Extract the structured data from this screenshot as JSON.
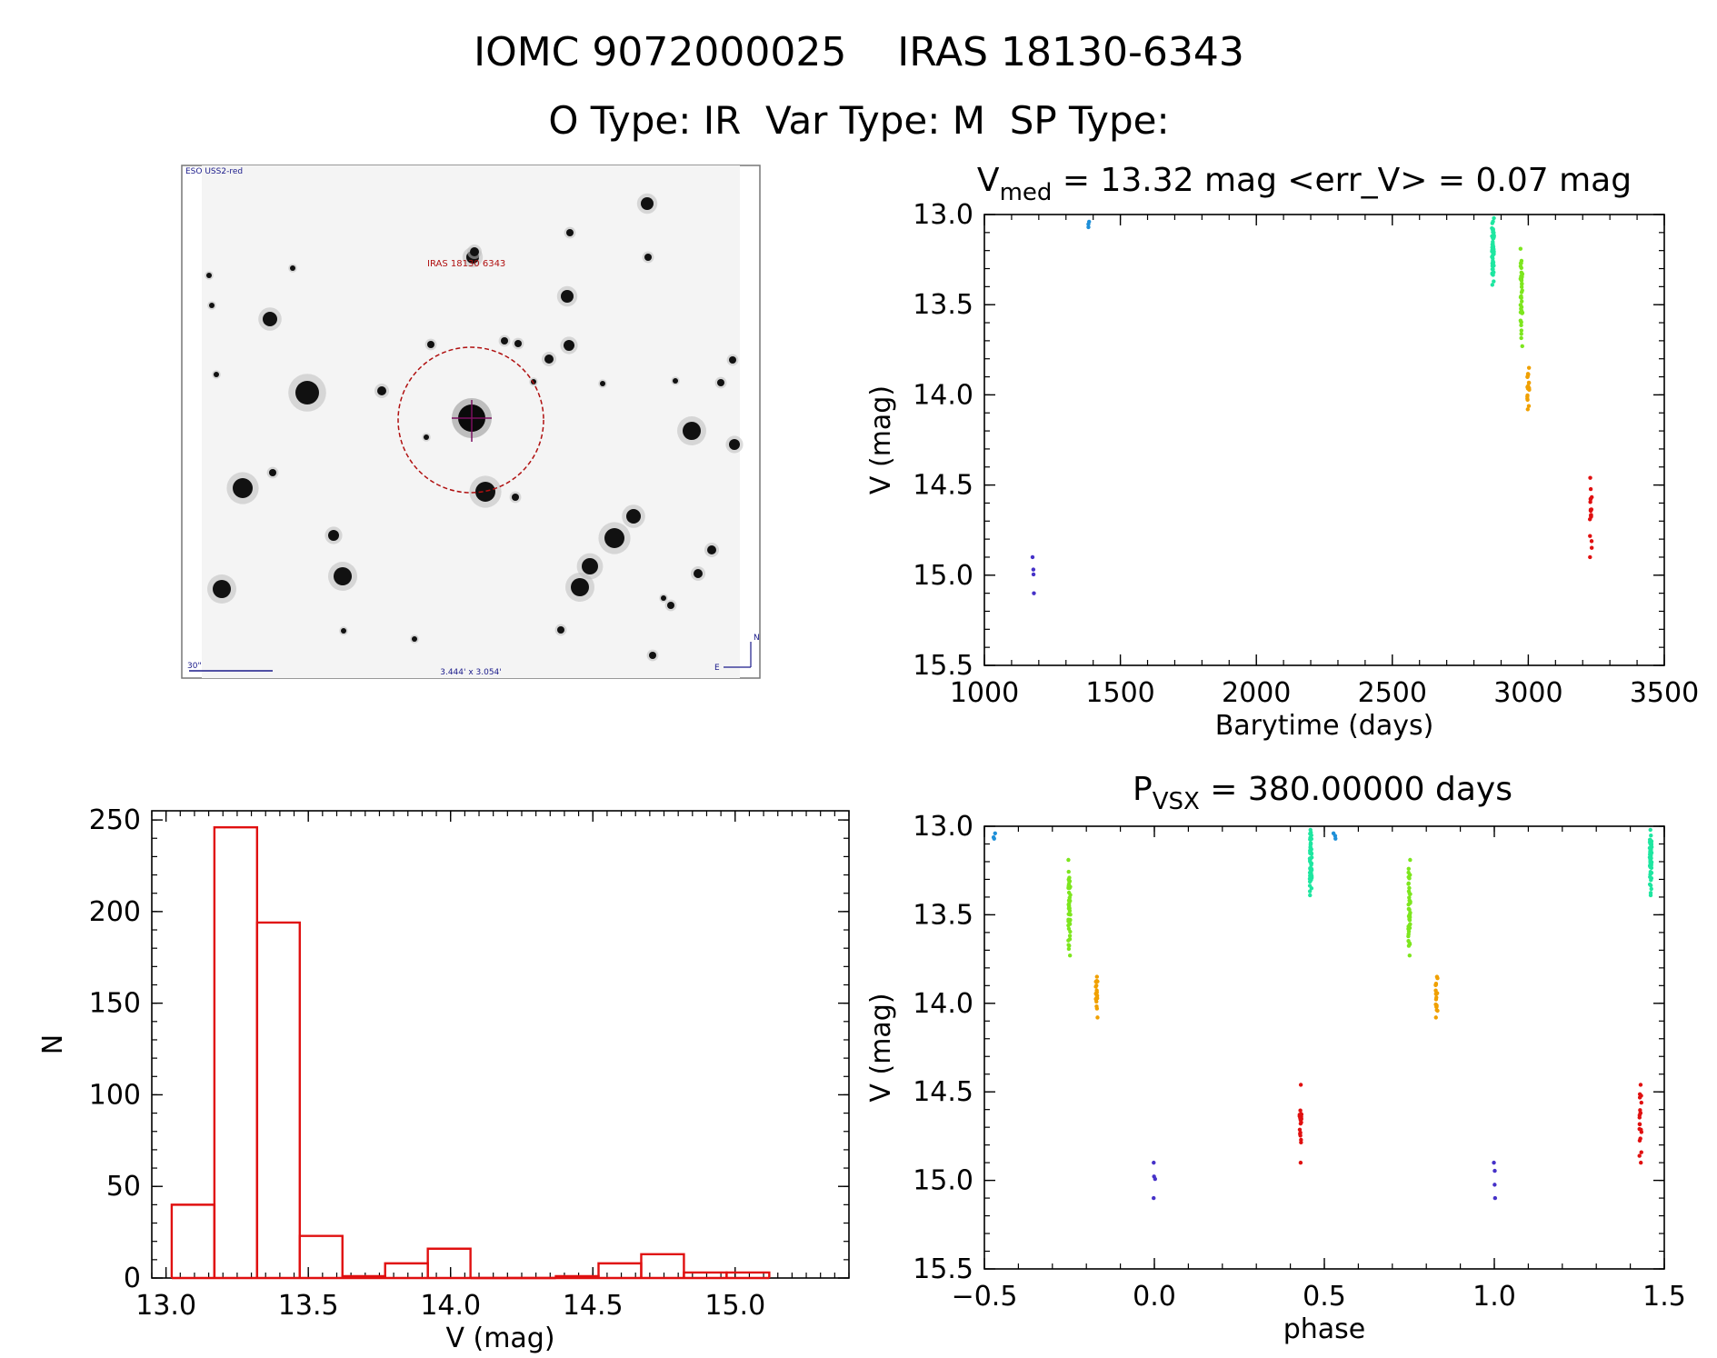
{
  "header": {
    "line1": "IOMC 9072000025    IRAS 18130-6343",
    "line2": "O Type: IR  Var Type: M  SP Type:"
  },
  "finder": {
    "survey_label": "ESO USS2-red",
    "object_label": "IRAS 18130 6343",
    "scale_label": "30\"",
    "fov_label": "3.444' x 3.054'",
    "compass_n": "N",
    "compass_e": "E"
  },
  "colors": {
    "blue": "#1e8fd8",
    "teal": "#1ee6a0",
    "green": "#7de61e",
    "orange": "#f0a000",
    "red": "#e01010",
    "purple": "#4632c8",
    "hist": "#e01010"
  },
  "chart_data": [
    {
      "type": "scatter",
      "id": "lightcurve",
      "title_main": "V",
      "title_sub": "med",
      "title_rest": " = 13.32 mag <err_V> = 0.07 mag",
      "xlabel": "Barytime (days)",
      "ylabel": "V (mag)",
      "xlim": [
        1000,
        3500
      ],
      "ylim": [
        15.5,
        13.0
      ],
      "xticks": [
        "1000",
        "1500",
        "2000",
        "2500",
        "3000",
        "3500"
      ],
      "yticks": [
        "13.0",
        "13.5",
        "14.0",
        "14.5",
        "15.0",
        "15.5"
      ],
      "groups": [
        {
          "color": "purple",
          "x": 1180,
          "ymin": 14.9,
          "ymax": 15.1,
          "n": 4
        },
        {
          "color": "blue",
          "x": 1385,
          "ymin": 13.04,
          "ymax": 13.07,
          "n": 3
        },
        {
          "color": "teal",
          "x": 2870,
          "ymin": 13.02,
          "ymax": 13.39,
          "n": 60
        },
        {
          "color": "green",
          "x": 2975,
          "ymin": 13.19,
          "ymax": 13.73,
          "n": 45
        },
        {
          "color": "orange",
          "x": 3000,
          "ymin": 13.85,
          "ymax": 14.08,
          "n": 20
        },
        {
          "color": "red",
          "x": 3230,
          "ymin": 14.46,
          "ymax": 14.9,
          "n": 20
        }
      ]
    },
    {
      "type": "bar",
      "id": "histogram",
      "xlabel": "V (mag)",
      "ylabel": "N",
      "xlim": [
        12.95,
        15.4
      ],
      "ylim": [
        0,
        255
      ],
      "xticks": [
        "13.0",
        "13.5",
        "14.0",
        "14.5",
        "15.0"
      ],
      "yticks": [
        "0",
        "50",
        "100",
        "150",
        "200",
        "250"
      ],
      "bin_edges": [
        13.02,
        13.17,
        13.32,
        13.47,
        13.62,
        13.77,
        13.92,
        14.07,
        14.22,
        14.37,
        14.52,
        14.67,
        14.82,
        14.97,
        15.12
      ],
      "values": [
        40,
        246,
        194,
        23,
        1,
        8,
        16,
        0,
        0,
        1,
        8,
        13,
        3,
        3
      ]
    },
    {
      "type": "scatter",
      "id": "phased",
      "title_main": "P",
      "title_sub": "VSX",
      "title_rest": " = 380.00000 days",
      "xlabel": "phase",
      "ylabel": "V (mag)",
      "xlim": [
        -0.5,
        1.5
      ],
      "ylim": [
        15.5,
        13.0
      ],
      "xticks": [
        "-0.5",
        "0.0",
        "0.5",
        "1.0",
        "1.5"
      ],
      "yticks": [
        "13.0",
        "13.5",
        "14.0",
        "14.5",
        "15.0",
        "15.5"
      ],
      "groups": [
        {
          "color": "blue",
          "x": -0.47,
          "ymin": 13.04,
          "ymax": 13.07,
          "n": 3
        },
        {
          "color": "green",
          "x": -0.25,
          "ymin": 13.19,
          "ymax": 13.73,
          "n": 45
        },
        {
          "color": "orange",
          "x": -0.17,
          "ymin": 13.85,
          "ymax": 14.08,
          "n": 20
        },
        {
          "color": "purple",
          "x": 0.0,
          "ymin": 14.9,
          "ymax": 15.1,
          "n": 4
        },
        {
          "color": "red",
          "x": 0.43,
          "ymin": 14.46,
          "ymax": 14.9,
          "n": 20
        },
        {
          "color": "teal",
          "x": 0.46,
          "ymin": 13.02,
          "ymax": 13.39,
          "n": 60
        },
        {
          "color": "blue",
          "x": 0.53,
          "ymin": 13.04,
          "ymax": 13.07,
          "n": 3
        },
        {
          "color": "green",
          "x": 0.75,
          "ymin": 13.19,
          "ymax": 13.73,
          "n": 45
        },
        {
          "color": "orange",
          "x": 0.83,
          "ymin": 13.85,
          "ymax": 14.08,
          "n": 20
        },
        {
          "color": "purple",
          "x": 1.0,
          "ymin": 14.9,
          "ymax": 15.1,
          "n": 4
        },
        {
          "color": "red",
          "x": 1.43,
          "ymin": 14.46,
          "ymax": 14.9,
          "n": 20
        },
        {
          "color": "teal",
          "x": 1.46,
          "ymin": 13.02,
          "ymax": 13.39,
          "n": 60
        }
      ]
    }
  ]
}
